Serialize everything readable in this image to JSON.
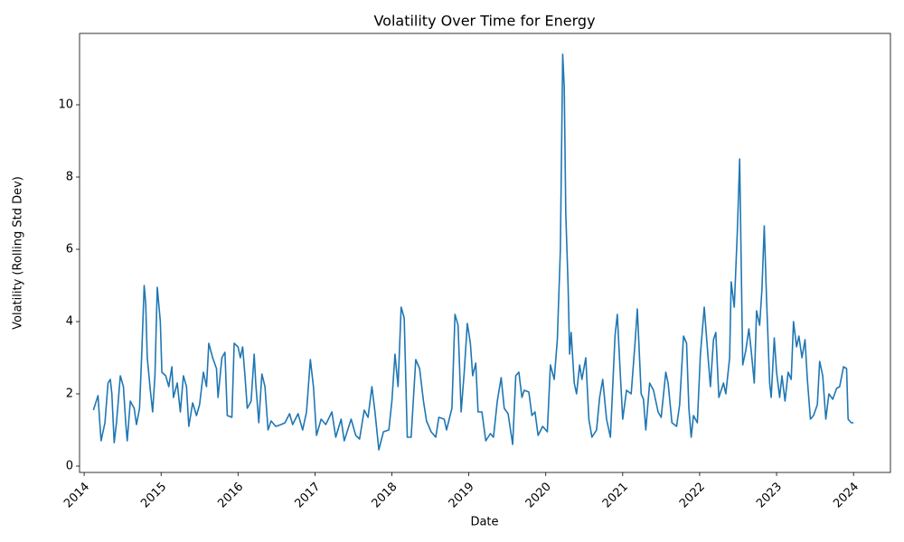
{
  "chart_data": {
    "type": "line",
    "title": "Volatility Over Time for Energy",
    "x_label": "Date",
    "y_label": "Volatility (Rolling Std Dev)",
    "color": "#1f77b4",
    "xlim": [
      2013.94,
      2024.48
    ],
    "xticks": [
      2014,
      2015,
      2016,
      2017,
      2018,
      2019,
      2020,
      2021,
      2022,
      2023,
      2024
    ],
    "ylim": [
      -0.175,
      11.975
    ],
    "yticks": [
      0,
      2,
      4,
      6,
      8,
      10
    ],
    "x": [
      2014.12,
      2014.18,
      2014.2,
      2014.22,
      2014.27,
      2014.31,
      2014.34,
      2014.36,
      2014.39,
      2014.42,
      2014.47,
      2014.51,
      2014.54,
      2014.56,
      2014.6,
      2014.65,
      2014.68,
      2014.72,
      2014.75,
      2014.78,
      2014.8,
      2014.82,
      2014.86,
      2014.89,
      2014.92,
      2014.95,
      2014.99,
      2015.01,
      2015.06,
      2015.1,
      2015.14,
      2015.16,
      2015.21,
      2015.25,
      2015.29,
      2015.33,
      2015.36,
      2015.41,
      2015.46,
      2015.5,
      2015.55,
      2015.59,
      2015.62,
      2015.67,
      2015.72,
      2015.74,
      2015.79,
      2015.83,
      2015.86,
      2015.92,
      2015.95,
      2016.0,
      2016.03,
      2016.06,
      2016.09,
      2016.12,
      2016.17,
      2016.21,
      2016.23,
      2016.27,
      2016.31,
      2016.35,
      2016.39,
      2016.43,
      2016.49,
      2016.56,
      2016.61,
      2016.67,
      2016.71,
      2016.78,
      2016.84,
      2016.89,
      2016.94,
      2016.98,
      2017.02,
      2017.08,
      2017.14,
      2017.22,
      2017.27,
      2017.34,
      2017.38,
      2017.47,
      2017.53,
      2017.58,
      2017.64,
      2017.69,
      2017.74,
      2017.78,
      2017.83,
      2017.89,
      2017.96,
      2018.0,
      2018.04,
      2018.08,
      2018.12,
      2018.16,
      2018.2,
      2018.25,
      2018.31,
      2018.36,
      2018.41,
      2018.45,
      2018.51,
      2018.57,
      2018.61,
      2018.68,
      2018.71,
      2018.78,
      2018.82,
      2018.86,
      2018.9,
      2018.94,
      2018.98,
      2019.02,
      2019.05,
      2019.09,
      2019.12,
      2019.17,
      2019.22,
      2019.28,
      2019.32,
      2019.37,
      2019.42,
      2019.46,
      2019.51,
      2019.57,
      2019.61,
      2019.65,
      2019.69,
      2019.72,
      2019.78,
      2019.82,
      2019.86,
      2019.9,
      2019.96,
      2020.02,
      2020.06,
      2020.11,
      2020.15,
      2020.19,
      2020.22,
      2020.24,
      2020.26,
      2020.29,
      2020.31,
      2020.33,
      2020.37,
      2020.4,
      2020.44,
      2020.47,
      2020.52,
      2020.56,
      2020.6,
      2020.66,
      2020.7,
      2020.74,
      2020.79,
      2020.84,
      2020.9,
      2020.93,
      2020.97,
      2021.0,
      2021.05,
      2021.11,
      2021.16,
      2021.19,
      2021.24,
      2021.27,
      2021.3,
      2021.35,
      2021.4,
      2021.46,
      2021.5,
      2021.56,
      2021.59,
      2021.64,
      2021.7,
      2021.74,
      2021.79,
      2021.83,
      2021.86,
      2021.89,
      2021.92,
      2021.97,
      2022.01,
      2022.06,
      2022.11,
      2022.14,
      2022.18,
      2022.21,
      2022.25,
      2022.31,
      2022.34,
      2022.39,
      2022.41,
      2022.45,
      2022.49,
      2022.52,
      2022.56,
      2022.6,
      2022.64,
      2022.67,
      2022.71,
      2022.74,
      2022.78,
      2022.81,
      2022.84,
      2022.87,
      2022.91,
      2022.93,
      2022.97,
      2023.0,
      2023.04,
      2023.07,
      2023.11,
      2023.15,
      2023.19,
      2023.22,
      2023.26,
      2023.29,
      2023.33,
      2023.37,
      2023.4,
      2023.44,
      2023.48,
      2023.53,
      2023.56,
      2023.6,
      2023.64,
      2023.68,
      2023.73,
      2023.78,
      2023.82,
      2023.87,
      2023.91,
      2023.93,
      2023.97,
      2024.0
    ],
    "values": [
      1.55,
      1.95,
      1.3,
      0.7,
      1.2,
      2.3,
      2.4,
      2.0,
      0.65,
      1.2,
      2.5,
      2.2,
      1.2,
      0.7,
      1.8,
      1.6,
      1.15,
      1.6,
      3.2,
      5.0,
      4.5,
      3.0,
      2.1,
      1.5,
      2.5,
      4.95,
      4.0,
      2.6,
      2.5,
      2.2,
      2.75,
      1.9,
      2.3,
      1.5,
      2.5,
      2.2,
      1.1,
      1.75,
      1.4,
      1.7,
      2.6,
      2.2,
      3.4,
      3.0,
      2.7,
      1.9,
      3.0,
      3.15,
      1.4,
      1.35,
      3.4,
      3.3,
      3.0,
      3.3,
      2.5,
      1.6,
      1.8,
      3.1,
      2.3,
      1.2,
      2.55,
      2.2,
      1.0,
      1.25,
      1.1,
      1.15,
      1.2,
      1.45,
      1.15,
      1.45,
      1.0,
      1.5,
      2.95,
      2.2,
      0.85,
      1.3,
      1.15,
      1.5,
      0.8,
      1.3,
      0.7,
      1.3,
      0.85,
      0.75,
      1.55,
      1.35,
      2.2,
      1.5,
      0.45,
      0.95,
      1.0,
      1.8,
      3.1,
      2.2,
      4.4,
      4.1,
      0.8,
      0.8,
      2.95,
      2.7,
      1.8,
      1.25,
      0.95,
      0.8,
      1.35,
      1.3,
      1.0,
      1.6,
      4.2,
      3.9,
      1.5,
      2.6,
      3.95,
      3.4,
      2.5,
      2.85,
      1.5,
      1.5,
      0.7,
      0.9,
      0.8,
      1.8,
      2.45,
      1.6,
      1.45,
      0.6,
      2.5,
      2.6,
      1.9,
      2.1,
      2.05,
      1.4,
      1.5,
      0.85,
      1.1,
      0.95,
      2.8,
      2.4,
      3.5,
      6.0,
      11.4,
      10.5,
      7.0,
      5.0,
      3.1,
      3.7,
      2.3,
      2.0,
      2.8,
      2.4,
      3.0,
      1.3,
      0.8,
      1.0,
      1.9,
      2.4,
      1.3,
      0.8,
      3.6,
      4.2,
      2.5,
      1.3,
      2.1,
      2.0,
      3.4,
      4.35,
      2.0,
      1.85,
      1.0,
      2.3,
      2.1,
      1.5,
      1.35,
      2.6,
      2.3,
      1.2,
      1.1,
      1.7,
      3.6,
      3.4,
      1.6,
      0.8,
      1.4,
      1.2,
      3.1,
      4.4,
      3.0,
      2.2,
      3.5,
      3.7,
      1.9,
      2.3,
      2.0,
      3.0,
      5.1,
      4.4,
      6.5,
      8.5,
      2.8,
      3.2,
      3.8,
      3.2,
      2.3,
      4.3,
      3.9,
      4.9,
      6.65,
      4.6,
      2.3,
      1.9,
      3.55,
      2.6,
      1.9,
      2.5,
      1.8,
      2.6,
      2.4,
      4.0,
      3.3,
      3.6,
      3.0,
      3.5,
      2.4,
      1.3,
      1.4,
      1.7,
      2.9,
      2.5,
      1.3,
      2.0,
      1.85,
      2.15,
      2.2,
      2.75,
      2.7,
      1.3,
      1.2,
      1.2
    ]
  }
}
